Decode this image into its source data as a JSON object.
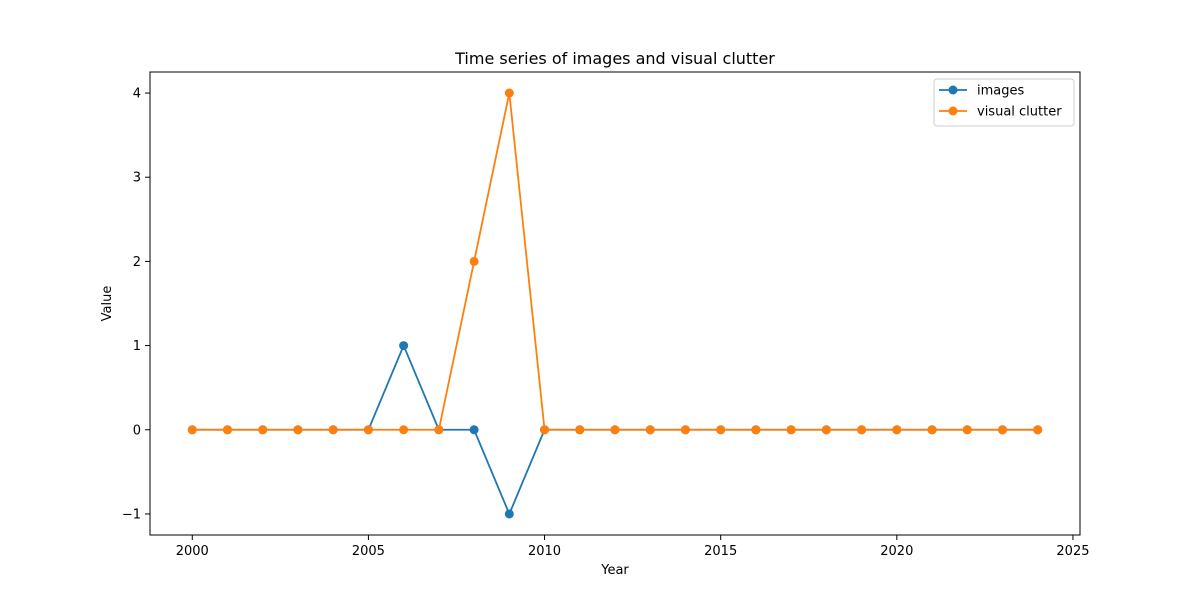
{
  "chart_data": {
    "type": "line",
    "title": "Time series of images and visual clutter",
    "xlabel": "Year",
    "ylabel": "Value",
    "xlim": [
      1998.8,
      2025.2
    ],
    "ylim": [
      -1.25,
      4.25
    ],
    "x_ticks": [
      2000,
      2005,
      2010,
      2015,
      2020,
      2025
    ],
    "y_ticks": [
      -1,
      0,
      1,
      2,
      3,
      4
    ],
    "grid": false,
    "legend_position": "top-right",
    "x": [
      2000,
      2001,
      2002,
      2003,
      2004,
      2005,
      2006,
      2007,
      2008,
      2009,
      2010,
      2011,
      2012,
      2013,
      2014,
      2015,
      2016,
      2017,
      2018,
      2019,
      2020,
      2021,
      2022,
      2023,
      2024
    ],
    "series": [
      {
        "name": "images",
        "color": "#1f77b4",
        "values": [
          0,
          0,
          0,
          0,
          0,
          0,
          1,
          0,
          0,
          -1,
          0,
          0,
          0,
          0,
          0,
          0,
          0,
          0,
          0,
          0,
          0,
          0,
          0,
          0,
          0
        ]
      },
      {
        "name": "visual clutter",
        "color": "#ff7f0e",
        "values": [
          0,
          0,
          0,
          0,
          0,
          0,
          0,
          0,
          2,
          4,
          0,
          0,
          0,
          0,
          0,
          0,
          0,
          0,
          0,
          0,
          0,
          0,
          0,
          0,
          0
        ]
      }
    ]
  }
}
